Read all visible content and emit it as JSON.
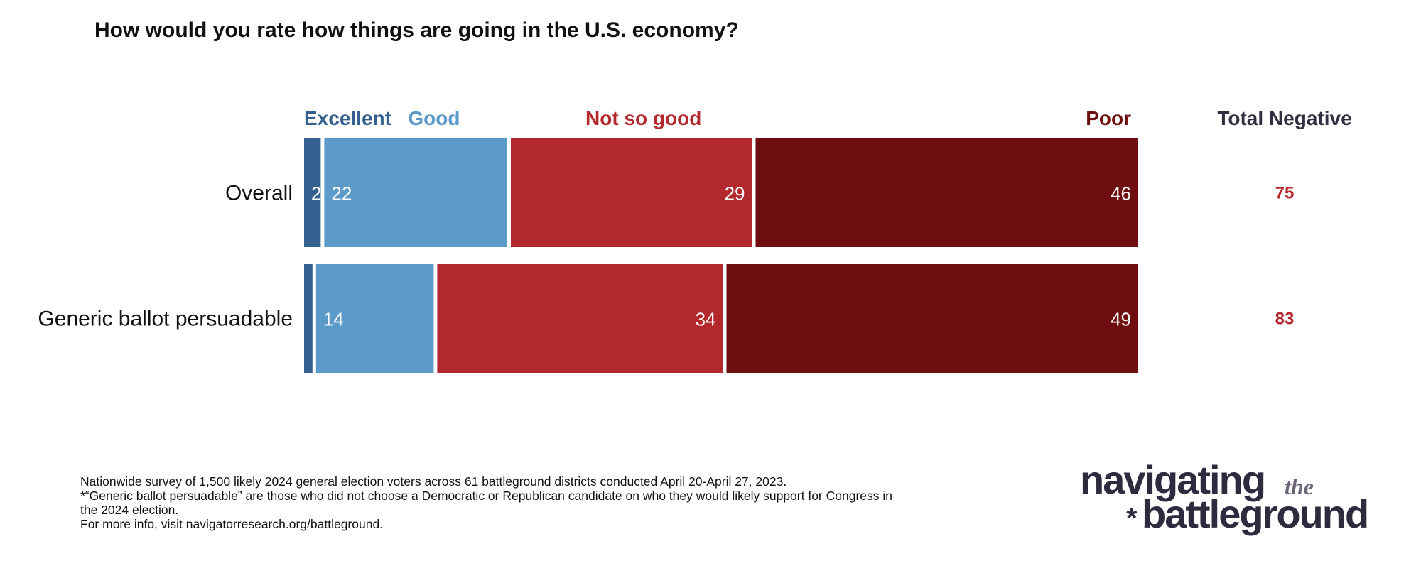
{
  "title": "How would you rate how things are going in the U.S. economy?",
  "chart_data": {
    "type": "bar",
    "orientation": "horizontal",
    "stacked": true,
    "categories": [
      "Overall",
      "Generic ballot persuadable"
    ],
    "series": [
      {
        "name": "Excellent",
        "values": [
          2,
          1
        ],
        "color": "#34618f"
      },
      {
        "name": "Good",
        "values": [
          22,
          14
        ],
        "color": "#5b9ac9"
      },
      {
        "name": "Not so good",
        "values": [
          29,
          34
        ],
        "color": "#b3282d"
      },
      {
        "name": "Poor",
        "values": [
          46,
          49
        ],
        "color": "#6e0e10"
      }
    ],
    "data_labels": [
      [
        "2",
        "22",
        "29",
        "46"
      ],
      [
        "",
        "14",
        "34",
        "49"
      ]
    ],
    "total_negative": {
      "label": "Total Negative",
      "values": [
        "75",
        "83"
      ],
      "color": "#b3282d"
    },
    "xlim": [
      0,
      100
    ],
    "grid": false,
    "legend": "top"
  },
  "footnotes": [
    "Nationwide survey of 1,500 likely 2024 general election voters across 61 battleground districts conducted April 20-April 27, 2023.",
    "*“Generic ballot persuadable” are those who did not choose a Democratic or Republican candidate on who they would likely support for Congress in the 2024 election.",
    "For more info, visit navigatorresearch.org/battleground."
  ],
  "logo": {
    "line1": "navigating",
    "line1_small": "the",
    "line2": "battleground",
    "mark": "*",
    "color": "#2f2a3d",
    "accent": "#6d6577"
  }
}
